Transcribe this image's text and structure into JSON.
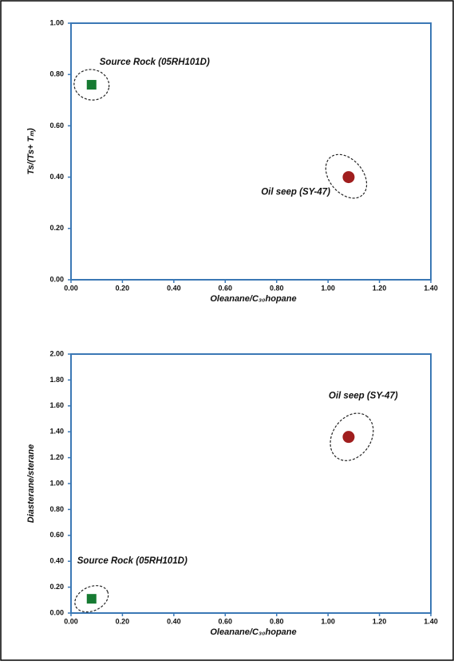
{
  "chart_data": [
    {
      "type": "scatter",
      "xlabel": "Oleanane/C₃₀hopane",
      "ylabel": "Ts/(Ts+ Tₘ)",
      "xlim": [
        0,
        1.4
      ],
      "ylim": [
        0,
        1
      ],
      "xticks": [
        {
          "value": 0,
          "label": "0.00"
        },
        {
          "value": 0.2,
          "label": "0.20"
        },
        {
          "value": 0.4,
          "label": "0.40"
        },
        {
          "value": 0.6,
          "label": "0.60"
        },
        {
          "value": 0.8,
          "label": "0.80"
        },
        {
          "value": 1,
          "label": "1.00"
        },
        {
          "value": 1.2,
          "label": "1.20"
        },
        {
          "value": 1.4,
          "label": "1.40"
        }
      ],
      "yticks": [
        {
          "value": 0,
          "label": "0.00"
        },
        {
          "value": 0.2,
          "label": "0.20"
        },
        {
          "value": 0.4,
          "label": "0.40"
        },
        {
          "value": 0.6,
          "label": "0.60"
        },
        {
          "value": 0.8,
          "label": "0.80"
        },
        {
          "value": 1,
          "label": "1.00"
        }
      ],
      "series": [
        {
          "name": "Source Rock (05RH101D)",
          "color": "#167a32",
          "marker": "square",
          "x": [
            0.08
          ],
          "values": [
            0.76
          ]
        },
        {
          "name": "Oil seep (SY-47)",
          "color": "#a01e1e",
          "marker": "circle",
          "x": [
            1.08
          ],
          "values": [
            0.4
          ]
        }
      ]
    },
    {
      "type": "scatter",
      "xlabel": "Oleanane/C₃₀hopane",
      "ylabel": "Diasterane/sterane",
      "xlim": [
        0,
        1.4
      ],
      "ylim": [
        0,
        2
      ],
      "xticks": [
        {
          "value": 0,
          "label": "0.00"
        },
        {
          "value": 0.2,
          "label": "0.20"
        },
        {
          "value": 0.4,
          "label": "0.40"
        },
        {
          "value": 0.6,
          "label": "0.60"
        },
        {
          "value": 0.8,
          "label": "0.80"
        },
        {
          "value": 1,
          "label": "1.00"
        },
        {
          "value": 1.2,
          "label": "1.20"
        },
        {
          "value": 1.4,
          "label": "1.40"
        }
      ],
      "yticks": [
        {
          "value": 0,
          "label": "0.00"
        },
        {
          "value": 0.2,
          "label": "0.20"
        },
        {
          "value": 0.4,
          "label": "0.40"
        },
        {
          "value": 0.6,
          "label": "0.60"
        },
        {
          "value": 0.8,
          "label": "0.80"
        },
        {
          "value": 1,
          "label": "1.00"
        },
        {
          "value": 1.2,
          "label": "1.20"
        },
        {
          "value": 1.4,
          "label": "1.40"
        },
        {
          "value": 1.6,
          "label": "1.60"
        },
        {
          "value": 1.8,
          "label": "1.80"
        },
        {
          "value": 2,
          "label": "2.00"
        }
      ],
      "series": [
        {
          "name": "Source Rock (05RH101D)",
          "color": "#167a32",
          "marker": "square",
          "x": [
            0.08
          ],
          "values": [
            0.11
          ]
        },
        {
          "name": "Oil seep (SY-47)",
          "color": "#a01e1e",
          "marker": "circle",
          "x": [
            1.08
          ],
          "values": [
            1.36
          ]
        }
      ]
    }
  ]
}
